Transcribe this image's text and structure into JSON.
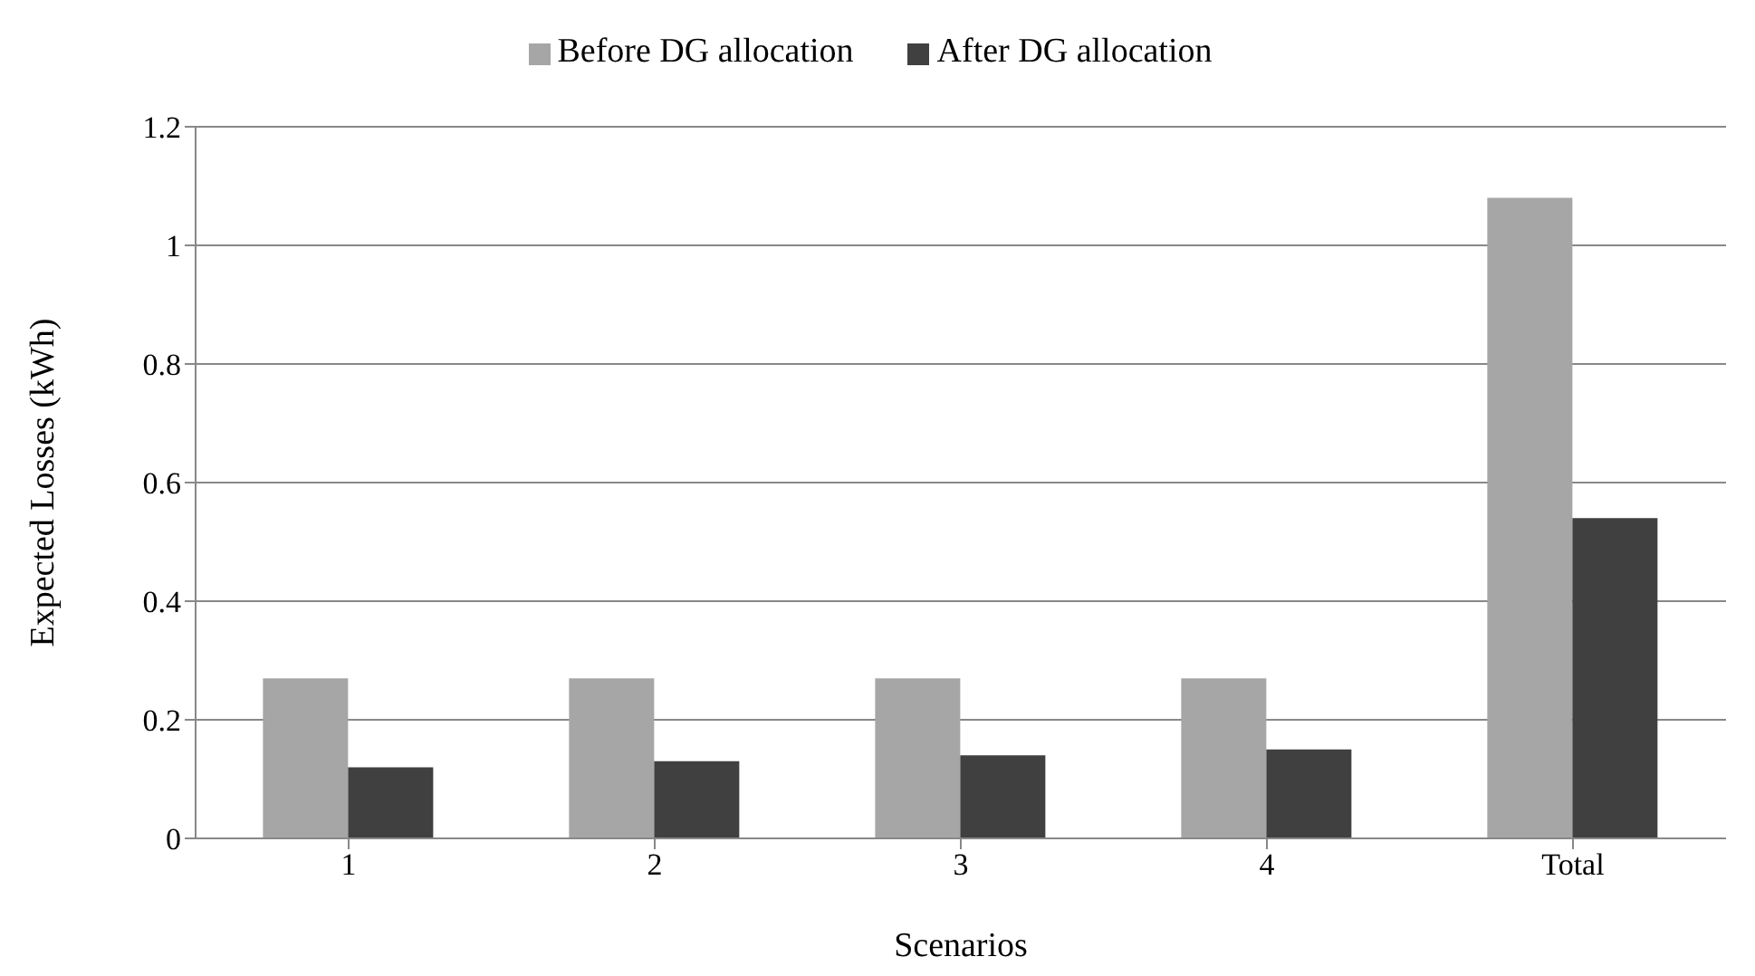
{
  "chart_data": {
    "type": "bar",
    "xlabel": "Scenarios",
    "ylabel": "Expected Losses (kWh)",
    "categories": [
      "1",
      "2",
      "3",
      "4",
      "Total"
    ],
    "series": [
      {
        "name": "Before DG allocation",
        "color": "#a6a6a6",
        "values": [
          0.27,
          0.27,
          0.27,
          0.27,
          1.08
        ]
      },
      {
        "name": "After DG allocation",
        "color": "#404040",
        "values": [
          0.12,
          0.13,
          0.14,
          0.15,
          0.54
        ]
      }
    ],
    "ylim": [
      0,
      1.2
    ],
    "yticks": [
      0,
      0.2,
      0.4,
      0.6,
      0.8,
      1,
      1.2
    ],
    "grid": "y",
    "legend": "top"
  }
}
